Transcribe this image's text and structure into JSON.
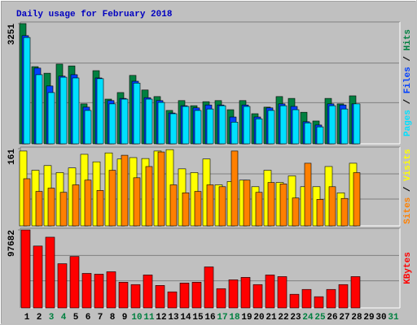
{
  "chart_data": {
    "type": "bar",
    "title": "Daily usage for February 2018",
    "title_color": "#0000c0",
    "categories": [
      "1",
      "2",
      "3",
      "4",
      "5",
      "6",
      "7",
      "8",
      "9",
      "10",
      "11",
      "12",
      "13",
      "14",
      "15",
      "16",
      "17",
      "18",
      "19",
      "20",
      "21",
      "22",
      "23",
      "24",
      "25",
      "26",
      "27",
      "28",
      "29",
      "30",
      "31"
    ],
    "category_colors": [
      "#000000",
      "#000000",
      "#008040",
      "#008040",
      "#000000",
      "#000000",
      "#000000",
      "#000000",
      "#000000",
      "#008040",
      "#008040",
      "#000000",
      "#000000",
      "#000000",
      "#000000",
      "#000000",
      "#008040",
      "#008040",
      "#000000",
      "#000000",
      "#000000",
      "#000000",
      "#000000",
      "#008040",
      "#008040",
      "#000000",
      "#000000",
      "#000000",
      "#000000",
      "#000000",
      "#008040"
    ],
    "grid_divisions": 3,
    "panels": [
      {
        "ylim": [
          0,
          3251
        ],
        "yticks": [
          3251
        ],
        "legend_separator": " / ",
        "series": [
          {
            "name": "Hits",
            "color": "#008040",
            "values": [
              3251,
              2070,
              1890,
              2140,
              2090,
              1050,
              1960,
              1180,
              1360,
              1830,
              1430,
              1250,
              870,
              1140,
              1000,
              1110,
              1140,
              890,
              1140,
              780,
              960,
              1250,
              1200,
              820,
              580,
              1200,
              1050,
              1270,
              null,
              null,
              null
            ]
          },
          {
            "name": "Files",
            "color": "#0040ff",
            "values": [
              2920,
              2030,
              1540,
              1810,
              1850,
              960,
              1760,
              1140,
              1200,
              1670,
              1220,
              1140,
              800,
              1000,
              940,
              1020,
              1020,
              690,
              1020,
              690,
              940,
              1050,
              980,
              560,
              470,
              1050,
              1020,
              1050,
              null,
              null,
              null
            ]
          },
          {
            "name": "Pages",
            "color": "#00e0ff",
            "values": [
              2870,
              1850,
              1360,
              1780,
              1760,
              870,
              1740,
              1050,
              1180,
              1620,
              1180,
              1090,
              780,
              980,
              870,
              910,
              1000,
              550,
              980,
              640,
              870,
              1000,
              890,
              530,
              420,
              1000,
              910,
              1050,
              null,
              null,
              null
            ]
          }
        ]
      },
      {
        "ylim": [
          0,
          161
        ],
        "yticks": [
          161
        ],
        "legend_separator": " / ",
        "series": [
          {
            "name": "Visits",
            "color": "#ffff00",
            "values": [
              156,
              115,
              125,
              110,
              120,
              149,
              133,
              152,
              139,
              142,
              140,
              156,
              159,
              118,
              110,
              139,
              84,
              91,
              94,
              80,
              115,
              89,
              103,
              80,
              80,
              123,
              67,
              130,
              null,
              null,
              null
            ]
          },
          {
            "name": "Sites",
            "color": "#ff8000",
            "values": [
              97,
              70,
              77,
              68,
              84,
              94,
              72,
              115,
              147,
              99,
              123,
              154,
              84,
              67,
              70,
              84,
              80,
              156,
              94,
              68,
              89,
              86,
              56,
              130,
              53,
              80,
              55,
              110,
              null,
              null,
              null
            ]
          }
        ]
      },
      {
        "ylim": [
          0,
          97682
        ],
        "yticks": [
          97682
        ],
        "legend_separator": " / ",
        "series": [
          {
            "name": "KBytes",
            "color": "#ff0000",
            "values": [
              97682,
              77100,
              88400,
              54500,
              63800,
              42100,
              41100,
              44200,
              30800,
              27800,
              40100,
              26700,
              18500,
              29800,
              30800,
              50400,
              22600,
              33900,
              37000,
              27800,
              40100,
              38000,
              15400,
              21600,
              12300,
              21600,
              27800,
              38000,
              null,
              null,
              null
            ]
          }
        ]
      }
    ]
  }
}
